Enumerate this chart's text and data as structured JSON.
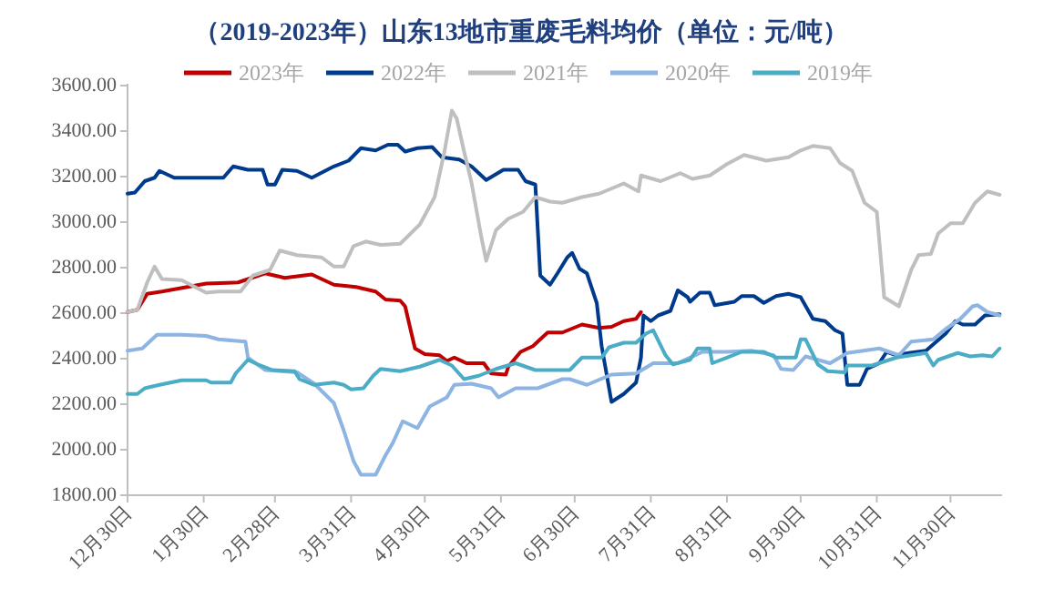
{
  "chart_data": {
    "type": "line",
    "title": "（2019-2023年）山东13地市重废毛料均价（单位：元/吨）",
    "legend": "top",
    "grid": false,
    "marker": "none",
    "line_style": "solid",
    "xlim": [
      "2022-12-30",
      "2023-12-21"
    ],
    "xticks": [
      {
        "value": "2022-12-30",
        "label": "12月30日"
      },
      {
        "value": "2023-01-30",
        "label": "1月30日"
      },
      {
        "value": "2023-02-28",
        "label": "2月28日"
      },
      {
        "value": "2023-03-31",
        "label": "3月31日"
      },
      {
        "value": "2023-04-30",
        "label": "4月30日"
      },
      {
        "value": "2023-05-31",
        "label": "5月31日"
      },
      {
        "value": "2023-06-30",
        "label": "6月30日"
      },
      {
        "value": "2023-07-31",
        "label": "7月31日"
      },
      {
        "value": "2023-08-31",
        "label": "8月31日"
      },
      {
        "value": "2023-09-30",
        "label": "9月30日"
      },
      {
        "value": "2023-10-31",
        "label": "10月31日"
      },
      {
        "value": "2023-11-30",
        "label": "11月30日"
      }
    ],
    "ylim": [
      1800,
      3600
    ],
    "yticks": [
      {
        "value": 1800,
        "label": "1800.00"
      },
      {
        "value": 2000,
        "label": "2000.00"
      },
      {
        "value": 2200,
        "label": "2200.00"
      },
      {
        "value": 2400,
        "label": "2400.00"
      },
      {
        "value": 2600,
        "label": "2600.00"
      },
      {
        "value": 2800,
        "label": "2800.00"
      },
      {
        "value": 3000,
        "label": "3000.00"
      },
      {
        "value": 3200,
        "label": "3200.00"
      },
      {
        "value": 3400,
        "label": "3400.00"
      },
      {
        "value": 3600,
        "label": "3600.00"
      }
    ],
    "series": [
      {
        "name": "2023年",
        "color": "#c00000",
        "x": [
          "2022-12-30",
          "2023-01-03",
          "2023-01-07",
          "2023-01-13",
          "2023-01-31",
          "2023-02-13",
          "2023-02-24",
          "2023-03-04",
          "2023-03-15",
          "2023-03-24",
          "2023-04-02",
          "2023-04-10",
          "2023-04-14",
          "2023-04-20",
          "2023-04-22",
          "2023-04-26",
          "2023-04-30",
          "2023-05-06",
          "2023-05-09",
          "2023-05-12",
          "2023-05-17",
          "2023-05-24",
          "2023-05-27",
          "2023-06-02",
          "2023-06-03",
          "2023-06-08",
          "2023-06-13",
          "2023-06-19",
          "2023-06-25",
          "2023-07-03",
          "2023-07-10",
          "2023-07-15",
          "2023-07-20",
          "2023-07-25",
          "2023-07-27"
        ],
        "values": [
          2605,
          2615,
          2685,
          2695,
          2730,
          2735,
          2775,
          2755,
          2770,
          2725,
          2715,
          2695,
          2660,
          2655,
          2630,
          2445,
          2420,
          2415,
          2390,
          2405,
          2380,
          2380,
          2335,
          2330,
          2365,
          2430,
          2455,
          2515,
          2515,
          2550,
          2535,
          2540,
          2565,
          2575,
          2605
        ]
      },
      {
        "name": "2022年",
        "color": "#003a8c",
        "x": [
          "2022-12-30",
          "2023-01-02",
          "2023-01-06",
          "2023-01-10",
          "2023-01-12",
          "2023-01-18",
          "2023-02-07",
          "2023-02-11",
          "2023-02-17",
          "2023-02-23",
          "2023-02-25",
          "2023-02-28",
          "2023-03-03",
          "2023-03-09",
          "2023-03-15",
          "2023-03-24",
          "2023-03-30",
          "2023-04-04",
          "2023-04-10",
          "2023-04-15",
          "2023-04-19",
          "2023-04-22",
          "2023-04-27",
          "2023-05-03",
          "2023-05-07",
          "2023-05-14",
          "2023-05-19",
          "2023-05-25",
          "2023-06-01",
          "2023-06-07",
          "2023-06-10",
          "2023-06-14",
          "2023-06-16",
          "2023-06-20",
          "2023-06-23",
          "2023-06-27",
          "2023-06-29",
          "2023-07-02",
          "2023-07-05",
          "2023-07-09",
          "2023-07-11",
          "2023-07-15",
          "2023-07-20",
          "2023-07-25",
          "2023-07-27",
          "2023-07-28",
          "2023-07-31",
          "2023-08-03",
          "2023-08-08",
          "2023-08-11",
          "2023-08-15",
          "2023-08-16",
          "2023-08-20",
          "2023-08-24",
          "2023-08-26",
          "2023-09-03",
          "2023-09-06",
          "2023-09-11",
          "2023-09-15",
          "2023-09-20",
          "2023-09-25",
          "2023-09-30",
          "2023-10-05",
          "2023-10-10",
          "2023-10-14",
          "2023-10-17",
          "2023-10-19",
          "2023-10-24",
          "2023-10-27",
          "2023-11-01",
          "2023-11-04",
          "2023-11-08",
          "2023-11-13",
          "2023-11-20",
          "2023-11-28",
          "2023-12-02",
          "2023-12-05",
          "2023-12-10",
          "2023-12-14",
          "2023-12-20"
        ],
        "values": [
          3125,
          3130,
          3180,
          3195,
          3225,
          3195,
          3195,
          3245,
          3230,
          3230,
          3165,
          3165,
          3230,
          3225,
          3195,
          3245,
          3270,
          3325,
          3315,
          3340,
          3340,
          3310,
          3325,
          3330,
          3285,
          3275,
          3245,
          3185,
          3230,
          3230,
          3180,
          3165,
          2765,
          2725,
          2775,
          2845,
          2865,
          2795,
          2775,
          2645,
          2455,
          2210,
          2245,
          2295,
          2405,
          2590,
          2565,
          2590,
          2610,
          2700,
          2670,
          2650,
          2690,
          2690,
          2635,
          2650,
          2675,
          2675,
          2645,
          2675,
          2685,
          2670,
          2575,
          2565,
          2525,
          2510,
          2285,
          2285,
          2355,
          2380,
          2430,
          2415,
          2425,
          2435,
          2510,
          2565,
          2550,
          2550,
          2590,
          2595
        ]
      },
      {
        "name": "2021年",
        "color": "#bfbfbf",
        "x": [
          "2022-12-30",
          "2023-01-03",
          "2023-01-07",
          "2023-01-10",
          "2023-01-13",
          "2023-01-21",
          "2023-01-31",
          "2023-02-05",
          "2023-02-14",
          "2023-02-19",
          "2023-02-26",
          "2023-03-02",
          "2023-03-09",
          "2023-03-19",
          "2023-03-24",
          "2023-03-28",
          "2023-04-01",
          "2023-04-06",
          "2023-04-12",
          "2023-04-20",
          "2023-04-28",
          "2023-05-04",
          "2023-05-08",
          "2023-05-11",
          "2023-05-13",
          "2023-05-16",
          "2023-05-19",
          "2023-05-23",
          "2023-05-25",
          "2023-05-29",
          "2023-06-03",
          "2023-06-09",
          "2023-06-14",
          "2023-06-20",
          "2023-06-25",
          "2023-07-03",
          "2023-07-10",
          "2023-07-20",
          "2023-07-26",
          "2023-07-27",
          "2023-08-04",
          "2023-08-12",
          "2023-08-17",
          "2023-08-24",
          "2023-08-31",
          "2023-09-07",
          "2023-09-16",
          "2023-09-25",
          "2023-09-30",
          "2023-10-05",
          "2023-10-12",
          "2023-10-16",
          "2023-10-21",
          "2023-10-26",
          "2023-10-31",
          "2023-11-03",
          "2023-11-09",
          "2023-11-14",
          "2023-11-17",
          "2023-11-22",
          "2023-11-25",
          "2023-11-30",
          "2023-12-05",
          "2023-12-10",
          "2023-12-15",
          "2023-12-20"
        ],
        "values": [
          2605,
          2615,
          2735,
          2805,
          2750,
          2745,
          2690,
          2695,
          2695,
          2765,
          2790,
          2875,
          2855,
          2845,
          2805,
          2805,
          2895,
          2915,
          2900,
          2905,
          2990,
          3110,
          3310,
          3490,
          3455,
          3310,
          3175,
          2935,
          2830,
          2965,
          3015,
          3045,
          3110,
          3090,
          3085,
          3110,
          3125,
          3170,
          3135,
          3205,
          3180,
          3215,
          3190,
          3205,
          3255,
          3295,
          3270,
          3285,
          3315,
          3335,
          3325,
          3260,
          3225,
          3085,
          3045,
          2670,
          2630,
          2790,
          2855,
          2860,
          2950,
          2995,
          2995,
          3085,
          3135,
          3120
        ]
      },
      {
        "name": "2020年",
        "color": "#8db4e2",
        "x": [
          "2022-12-30",
          "2023-01-05",
          "2023-01-11",
          "2023-01-21",
          "2023-01-31",
          "2023-02-05",
          "2023-02-16",
          "2023-02-17",
          "2023-02-24",
          "2023-03-09",
          "2023-03-16",
          "2023-03-24",
          "2023-03-28",
          "2023-04-01",
          "2023-04-04",
          "2023-04-10",
          "2023-04-14",
          "2023-04-17",
          "2023-04-21",
          "2023-04-27",
          "2023-05-02",
          "2023-05-09",
          "2023-05-12",
          "2023-05-19",
          "2023-05-27",
          "2023-05-30",
          "2023-06-06",
          "2023-06-15",
          "2023-06-25",
          "2023-06-28",
          "2023-07-05",
          "2023-07-15",
          "2023-07-25",
          "2023-08-01",
          "2023-08-11",
          "2023-08-21",
          "2023-08-31",
          "2023-09-10",
          "2023-09-19",
          "2023-09-22",
          "2023-09-27",
          "2023-10-02",
          "2023-10-12",
          "2023-10-19",
          "2023-11-01",
          "2023-11-09",
          "2023-11-14",
          "2023-11-23",
          "2023-11-28",
          "2023-12-04",
          "2023-12-09",
          "2023-12-11",
          "2023-12-15",
          "2023-12-20"
        ],
        "values": [
          2435,
          2445,
          2505,
          2505,
          2500,
          2485,
          2475,
          2405,
          2350,
          2340,
          2290,
          2205,
          2085,
          1950,
          1890,
          1890,
          1975,
          2030,
          2125,
          2095,
          2190,
          2230,
          2285,
          2290,
          2270,
          2230,
          2270,
          2270,
          2310,
          2310,
          2285,
          2330,
          2335,
          2380,
          2380,
          2430,
          2430,
          2435,
          2415,
          2355,
          2350,
          2410,
          2380,
          2425,
          2445,
          2415,
          2475,
          2485,
          2530,
          2575,
          2630,
          2635,
          2605,
          2590
        ]
      },
      {
        "name": "2019年",
        "color": "#4bacc6",
        "x": [
          "2022-12-30",
          "2023-01-03",
          "2023-01-06",
          "2023-01-12",
          "2023-01-21",
          "2023-01-31",
          "2023-02-02",
          "2023-02-10",
          "2023-02-12",
          "2023-02-17",
          "2023-02-21",
          "2023-02-27",
          "2023-03-08",
          "2023-03-10",
          "2023-03-16",
          "2023-03-24",
          "2023-03-28",
          "2023-03-31",
          "2023-04-05",
          "2023-04-09",
          "2023-04-12",
          "2023-04-20",
          "2023-04-28",
          "2023-05-06",
          "2023-05-11",
          "2023-05-16",
          "2023-05-22",
          "2023-05-29",
          "2023-06-06",
          "2023-06-14",
          "2023-06-20",
          "2023-06-28",
          "2023-07-03",
          "2023-07-11",
          "2023-07-14",
          "2023-07-20",
          "2023-07-25",
          "2023-07-29",
          "2023-08-01",
          "2023-08-06",
          "2023-08-09",
          "2023-08-16",
          "2023-08-19",
          "2023-08-24",
          "2023-08-25",
          "2023-08-31",
          "2023-09-06",
          "2023-09-15",
          "2023-09-20",
          "2023-09-28",
          "2023-09-30",
          "2023-10-02",
          "2023-10-07",
          "2023-10-11",
          "2023-10-18",
          "2023-10-19",
          "2023-10-29",
          "2023-11-08",
          "2023-11-20",
          "2023-11-23",
          "2023-11-25",
          "2023-12-03",
          "2023-12-08",
          "2023-12-13",
          "2023-12-17",
          "2023-12-20"
        ],
        "values": [
          2245,
          2245,
          2270,
          2285,
          2305,
          2305,
          2295,
          2295,
          2335,
          2395,
          2375,
          2350,
          2345,
          2310,
          2285,
          2295,
          2285,
          2265,
          2270,
          2325,
          2355,
          2345,
          2365,
          2395,
          2370,
          2310,
          2325,
          2355,
          2380,
          2350,
          2350,
          2350,
          2405,
          2405,
          2450,
          2470,
          2470,
          2510,
          2525,
          2415,
          2375,
          2395,
          2445,
          2445,
          2380,
          2405,
          2430,
          2430,
          2405,
          2405,
          2485,
          2485,
          2375,
          2345,
          2340,
          2370,
          2370,
          2405,
          2425,
          2370,
          2395,
          2425,
          2410,
          2415,
          2410,
          2445
        ]
      }
    ]
  }
}
